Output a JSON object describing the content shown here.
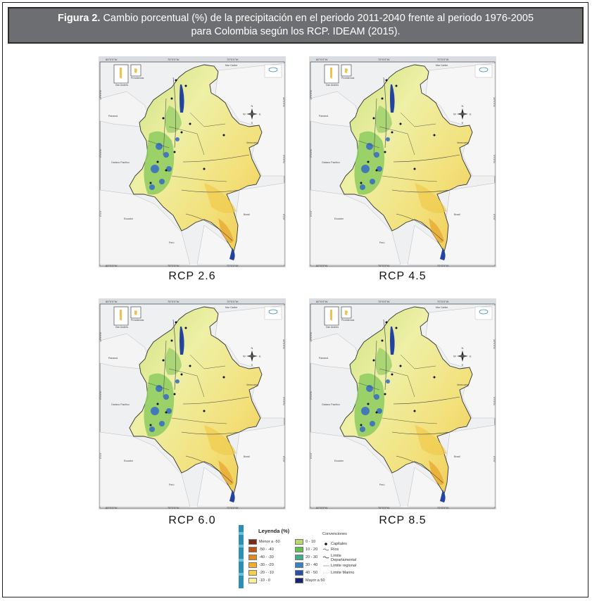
{
  "caption": {
    "label": "Figura 2.",
    "text_line1": "Cambio porcentual (%) de la precipitación en el periodo 2011-2040 frente al periodo 1976-2005",
    "text_line2": "para Colombia según los RCP. IDEAM (2015)."
  },
  "maps": [
    {
      "label": "RCP 2.6"
    },
    {
      "label": "RCP 4.5"
    },
    {
      "label": "RCP 6.0"
    },
    {
      "label": "RCP 8.5"
    }
  ],
  "map_text": {
    "top_ticks": [
      "80°0'0\"W",
      "75°0'0\"W",
      "70°0'0\"W"
    ],
    "bottom_ticks": [
      "80°0'0\"W",
      "75°0'0\"W",
      "70°0'0\"W"
    ],
    "left_ticks": [
      "10°0'0\"N",
      "5°0'0\"N",
      "0°0'0\""
    ],
    "right_ticks": [
      "10°0'0\"N",
      "5°0'0\"N",
      "0°0'0\""
    ],
    "inset1": "San Andrés",
    "inset2": "Providencia",
    "sea": "Mar Caribe",
    "ocean": "Océano Pacífico",
    "panama": "Panamá",
    "venezuela": "Venezuela",
    "ecuador": "Ecuador",
    "peru": "Perú",
    "brasil": "Brasil",
    "compass": {
      "n": "N",
      "s": "S",
      "e": "E",
      "w": "W"
    }
  },
  "legend": {
    "title": "Leyenda (%)",
    "items_left": [
      {
        "label": "Menor a -50",
        "color": "#7a2a12"
      },
      {
        "label": "-50 - -40",
        "color": "#b8561c"
      },
      {
        "label": "-40 - -30",
        "color": "#e08a1e"
      },
      {
        "label": "-30 - -20",
        "color": "#f2ad2a"
      },
      {
        "label": "-20 - -10",
        "color": "#f5cf4a"
      },
      {
        "label": "-10 - 0",
        "color": "#f6eea0"
      }
    ],
    "items_right": [
      {
        "label": "0 - 10",
        "color": "#b5d96a"
      },
      {
        "label": "10 - 20",
        "color": "#66bf55"
      },
      {
        "label": "20 - 30",
        "color": "#3fae8f"
      },
      {
        "label": "30 - 40",
        "color": "#3a7fc0"
      },
      {
        "label": "40 - 50",
        "color": "#2852a8"
      },
      {
        "label": "Mayor a 50",
        "color": "#17236e"
      }
    ]
  },
  "conventions": {
    "title": "Convenciones",
    "items": [
      "Capitales",
      "Ríos",
      "Límite",
      "Departamental",
      "Límite regional",
      "Límite Marino"
    ]
  }
}
